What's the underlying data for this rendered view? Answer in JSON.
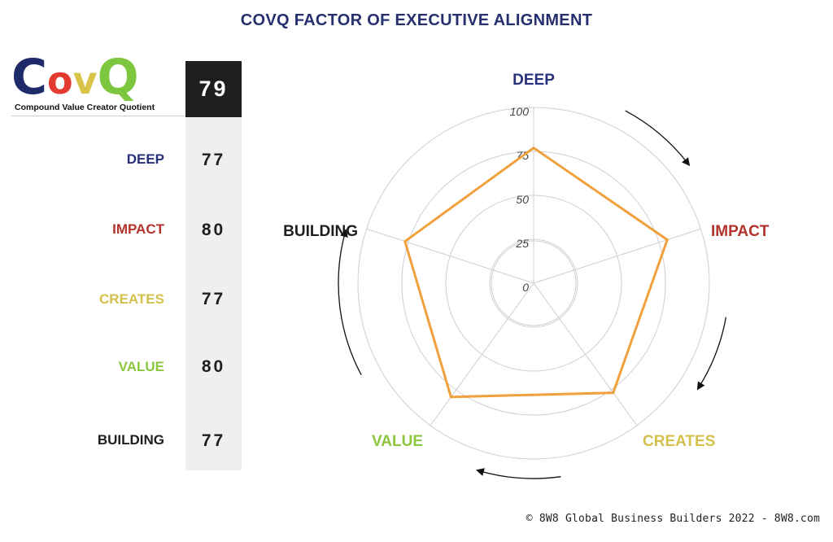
{
  "title": "COVQ FACTOR OF EXECUTIVE ALIGNMENT",
  "logo": {
    "letters": [
      "C",
      "o",
      "v",
      "Q"
    ],
    "subtitle": "Compound Value Creator Quotient"
  },
  "overall_score": "79",
  "rows": [
    {
      "label": "DEEP",
      "value": "77",
      "color": "#27307a"
    },
    {
      "label": "IMPACT",
      "value": "80",
      "color": "#b3322c"
    },
    {
      "label": "CREATES",
      "value": "77",
      "color": "#d4c04d"
    },
    {
      "label": "VALUE",
      "value": "80",
      "color": "#8cc63f"
    },
    {
      "label": "BUILDING",
      "value": "77",
      "color": "#1e1e1e"
    }
  ],
  "footer": "© 8W8 Global Business Builders 2022 - 8W8.com",
  "chart_data": {
    "type": "radar",
    "categories": [
      "DEEP",
      "IMPACT",
      "CREATES",
      "VALUE",
      "BUILDING"
    ],
    "category_colors": [
      "#27307a",
      "#b3322c",
      "#d4c04d",
      "#8cc63f",
      "#1e1e1e"
    ],
    "series": [
      {
        "values": [
          77,
          80,
          77,
          80,
          77
        ],
        "color": "#f0a03c"
      }
    ],
    "r_range": [
      0,
      100
    ],
    "r_ticks": [
      0,
      25,
      50,
      75,
      100
    ],
    "grid": true,
    "direction_arrows": "clockwise"
  }
}
